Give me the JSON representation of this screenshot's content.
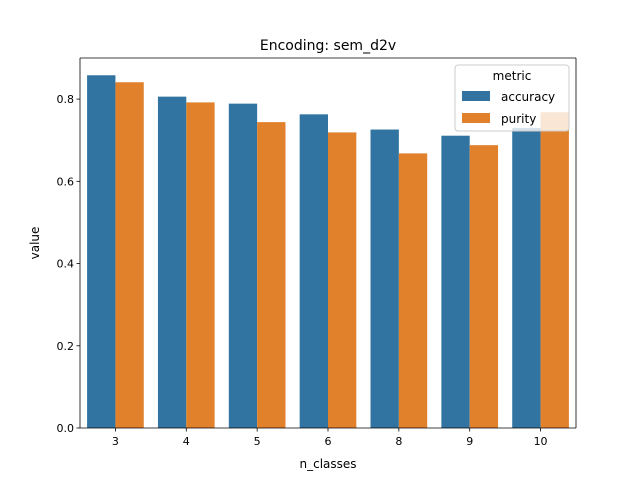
{
  "chart_data": {
    "type": "bar",
    "title": "Encoding: sem_d2v",
    "xlabel": "n_classes",
    "ylabel": "value",
    "ylim": [
      0,
      0.9
    ],
    "yticks": [
      "0.0",
      "0.2",
      "0.4",
      "0.6",
      "0.8"
    ],
    "categories": [
      "3",
      "4",
      "5",
      "6",
      "8",
      "9",
      "10"
    ],
    "series": [
      {
        "name": "accuracy",
        "color": "#3274a1",
        "values": [
          0.858,
          0.806,
          0.789,
          0.763,
          0.726,
          0.711,
          0.73
        ]
      },
      {
        "name": "purity",
        "color": "#e1812c",
        "values": [
          0.841,
          0.792,
          0.744,
          0.719,
          0.668,
          0.688,
          0.768
        ]
      }
    ],
    "legend": {
      "title": "metric",
      "placement": "top-right"
    },
    "grid": false
  }
}
